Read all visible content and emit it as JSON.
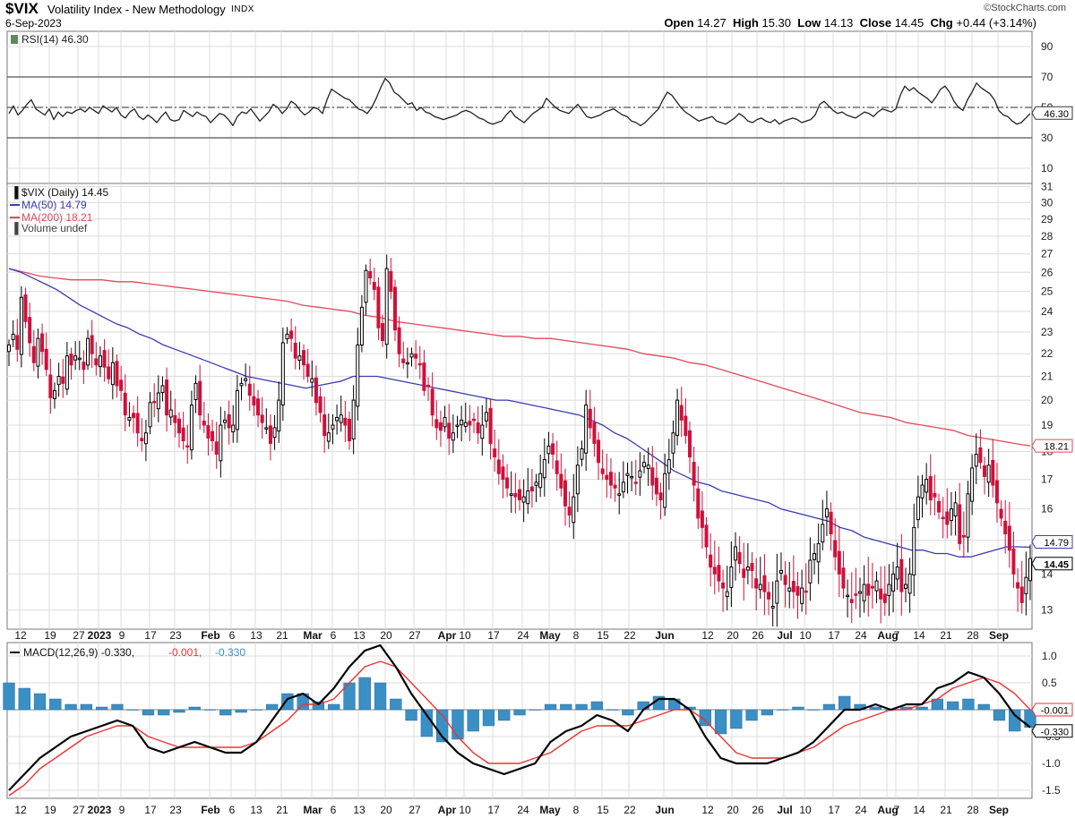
{
  "header": {
    "symbol": "$VIX",
    "name": "Volatility Index - New Methodology",
    "exchange": "INDX",
    "date": "6-Sep-2023",
    "credit": "©StockCharts.com",
    "open_label": "Open",
    "open": "14.27",
    "high_label": "High",
    "high": "15.30",
    "low_label": "Low",
    "low": "14.13",
    "close_label": "Close",
    "close": "14.45",
    "chg_label": "Chg",
    "chg": "+0.44 (+3.14%)"
  },
  "colors": {
    "up": "#000000",
    "down": "#d0103a",
    "ma50": "#3b3bb0",
    "ma200": "#e04a5a",
    "macd_line": "#000000",
    "signal_line": "#ee3333",
    "histogram": "#3a8fc4",
    "grid": "#dcdcdc"
  },
  "x_axis": {
    "tick_labels": [
      "12",
      "19",
      "27",
      "2023",
      "9",
      "17",
      "23",
      "Feb",
      "6",
      "13",
      "21",
      "Mar",
      "6",
      "13",
      "20",
      "27",
      "Apr",
      "10",
      "17",
      "24",
      "May",
      "8",
      "15",
      "22",
      "Jun",
      "12",
      "20",
      "26",
      "Jul",
      "10",
      "17",
      "24",
      "Aug",
      "7",
      "14",
      "21",
      "28",
      "Sep"
    ]
  },
  "chart_data": [
    {
      "type": "line",
      "panel": "rsi",
      "legend": "RSI(14) 46.30",
      "ylim": [
        0,
        100
      ],
      "yticks": [
        10,
        30,
        50,
        70,
        90
      ],
      "reference_lines": [
        30,
        50,
        70
      ],
      "last_value_label": "46.30",
      "series": [
        {
          "name": "RSI(14)",
          "values": [
            46,
            51,
            45,
            48,
            52,
            55,
            49,
            47,
            45,
            49,
            42,
            47,
            44,
            47,
            46,
            48,
            49,
            47,
            50,
            48,
            46,
            51,
            49,
            47,
            50,
            45,
            43,
            47,
            49,
            44,
            42,
            45,
            43,
            40,
            44,
            47,
            42,
            41,
            42,
            48,
            46,
            44,
            47,
            45,
            44,
            40,
            43,
            46,
            45,
            42,
            38,
            44,
            47,
            46,
            49,
            45,
            41,
            44,
            47,
            52,
            50,
            46,
            49,
            54,
            52,
            48,
            45,
            47,
            50,
            49,
            46,
            55,
            62,
            60,
            58,
            56,
            55,
            52,
            49,
            48,
            46,
            50,
            56,
            63,
            69,
            66,
            60,
            58,
            55,
            52,
            53,
            48,
            50,
            47,
            46,
            44,
            43,
            42,
            43,
            44,
            45,
            47,
            48,
            47,
            45,
            43,
            42,
            40,
            39,
            40,
            41,
            45,
            48,
            44,
            42,
            40,
            43,
            46,
            48,
            50,
            56,
            53,
            50,
            48,
            47,
            46,
            49,
            52,
            48,
            44,
            43,
            44,
            45,
            47,
            48,
            49,
            47,
            45,
            44,
            41,
            40,
            38,
            40,
            43,
            46,
            49,
            55,
            60,
            58,
            54,
            50,
            47,
            45,
            43,
            41,
            42,
            43,
            44,
            41,
            40,
            39,
            41,
            43,
            46,
            44,
            41,
            40,
            42,
            43,
            41,
            40,
            42,
            39,
            41,
            42,
            43,
            42,
            40,
            41,
            42,
            45,
            52,
            54,
            51,
            48,
            46,
            47,
            45,
            44,
            43,
            45,
            47,
            46,
            44,
            47,
            49,
            48,
            47,
            49,
            58,
            64,
            61,
            63,
            60,
            58,
            56,
            53,
            57,
            62,
            64,
            60,
            54,
            50,
            48,
            55,
            60,
            66,
            63,
            61,
            59,
            55,
            48,
            45,
            44,
            41,
            39,
            40,
            43,
            46
          ]
        }
      ],
      "xlabel": "",
      "ylabel": ""
    },
    {
      "type": "candlestick",
      "panel": "price",
      "legend": [
        "$VIX (Daily) 14.45",
        "MA(50) 14.79",
        "MA(200) 18.21",
        "Volume undef"
      ],
      "ylim": [
        12.5,
        31.2
      ],
      "yticks": [
        13,
        14,
        15,
        16,
        17,
        18,
        19,
        20,
        21,
        22,
        23,
        24,
        25,
        26,
        27,
        28,
        29,
        30,
        31
      ],
      "value_tags": {
        "ma200": "18.21",
        "ma50": "14.79",
        "close": "14.45"
      },
      "series_close": [
        22.4,
        22.9,
        22.2,
        24.7,
        23.5,
        22.5,
        21.6,
        22.7,
        22.1,
        21.3,
        20.1,
        20.4,
        21.0,
        20.7,
        21.9,
        21.5,
        21.9,
        21.8,
        21.3,
        22.7,
        22.0,
        21.5,
        21.9,
        21.4,
        20.9,
        21.6,
        20.6,
        20.4,
        19.4,
        19.3,
        19.3,
        18.7,
        18.4,
        18.7,
        19.9,
        19.9,
        20.3,
        20.6,
        19.4,
        19.6,
        19.1,
        18.7,
        18.4,
        18.2,
        19.8,
        20.7,
        19.4,
        19.0,
        18.5,
        18.4,
        17.9,
        19.0,
        19.2,
        18.9,
        19.0,
        20.4,
        20.7,
        20.9,
        20.2,
        19.8,
        19.4,
        19.1,
        18.9,
        18.3,
        18.9,
        20.0,
        22.5,
        22.9,
        22.7,
        21.8,
        21.9,
        21.5,
        21.0,
        20.9,
        19.9,
        19.5,
        18.6,
        18.7,
        19.0,
        19.3,
        19.4,
        19.0,
        18.4,
        20.0,
        22.4,
        24.2,
        26.1,
        25.7,
        25.1,
        23.2,
        22.6,
        26.2,
        25.0,
        23.1,
        22.0,
        21.6,
        21.6,
        22.0,
        21.8,
        21.5,
        20.4,
        20.6,
        19.4,
        18.9,
        18.8,
        19.3,
        18.5,
        18.7,
        19.0,
        19.2,
        19.1,
        19.0,
        19.2,
        18.7,
        19.0,
        19.5,
        18.3,
        17.8,
        17.2,
        17.0,
        16.7,
        16.5,
        16.4,
        16.3,
        16.4,
        16.6,
        16.6,
        16.9,
        17.2,
        17.7,
        18.2,
        17.9,
        17.2,
        16.7,
        16.1,
        15.8,
        16.4,
        17.5,
        18.1,
        19.8,
        18.9,
        18.3,
        17.6,
        17.2,
        17.0,
        16.8,
        16.7,
        16.5,
        16.9,
        17.2,
        17.1,
        16.9,
        17.3,
        17.6,
        17.5,
        16.8,
        16.5,
        16.3,
        17.2,
        17.7,
        18.7,
        20.0,
        19.2,
        18.6,
        17.8,
        16.8,
        15.7,
        15.4,
        14.8,
        14.2,
        14.0,
        13.8,
        13.6,
        13.5,
        14.2,
        14.8,
        14.3,
        13.9,
        14.2,
        14.1,
        13.6,
        13.7,
        13.5,
        13.3,
        13.1,
        13.8,
        14.1,
        13.7,
        13.6,
        13.5,
        13.4,
        13.6,
        13.5,
        14.4,
        14.6,
        14.9,
        15.5,
        16.0,
        15.2,
        14.5,
        14.0,
        13.6,
        13.4,
        13.2,
        13.4,
        13.5,
        13.7,
        13.4,
        13.6,
        13.8,
        13.3,
        13.2,
        13.7,
        14.0,
        14.2,
        13.5,
        13.7,
        14.0,
        15.4,
        16.4,
        16.8,
        17.0,
        16.3,
        16.4,
        15.9,
        15.7,
        15.5,
        16.0,
        16.2,
        14.9,
        15.1,
        16.5,
        17.4,
        17.9,
        17.6,
        17.1,
        17.5,
        16.8,
        16.2,
        15.7,
        15.2,
        14.7,
        14.0,
        13.6,
        13.2,
        13.9,
        14.45
      ],
      "ma50": [
        26.2,
        26.0,
        25.7,
        25.4,
        25.1,
        24.7,
        24.3,
        24.0,
        23.7,
        23.4,
        23.2,
        22.9,
        22.7,
        22.4,
        22.2,
        22.0,
        21.8,
        21.6,
        21.4,
        21.2,
        21.0,
        20.9,
        20.8,
        20.7,
        20.6,
        20.5,
        20.6,
        20.7,
        20.8,
        21.0,
        21.0,
        21.0,
        20.9,
        20.8,
        20.7,
        20.6,
        20.5,
        20.4,
        20.3,
        20.2,
        20.1,
        20.0,
        20.0,
        19.9,
        19.8,
        19.7,
        19.6,
        19.5,
        19.4,
        19.2,
        19.0,
        18.7,
        18.5,
        18.2,
        17.9,
        17.6,
        17.3,
        17.1,
        16.9,
        16.8,
        16.6,
        16.5,
        16.4,
        16.3,
        16.2,
        16.0,
        15.9,
        15.8,
        15.7,
        15.6,
        15.4,
        15.3,
        15.1,
        15.0,
        14.9,
        14.8,
        14.7,
        14.7,
        14.6,
        14.6,
        14.5,
        14.5,
        14.6,
        14.7,
        14.8,
        14.8,
        14.79
      ],
      "ma200": [
        26.2,
        26.0,
        25.8,
        25.7,
        25.6,
        25.6,
        25.6,
        25.5,
        25.5,
        25.4,
        25.3,
        25.2,
        25.1,
        25.0,
        24.9,
        24.8,
        24.7,
        24.6,
        24.5,
        24.3,
        24.2,
        24.1,
        24.0,
        23.8,
        23.7,
        23.5,
        23.4,
        23.3,
        23.2,
        23.1,
        23.0,
        22.9,
        22.8,
        22.8,
        22.7,
        22.7,
        22.6,
        22.5,
        22.4,
        22.3,
        22.2,
        22.0,
        21.9,
        21.8,
        21.6,
        21.5,
        21.3,
        21.1,
        20.9,
        20.7,
        20.5,
        20.3,
        20.1,
        19.9,
        19.7,
        19.5,
        19.4,
        19.3,
        19.1,
        19.0,
        18.9,
        18.8,
        18.6,
        18.5,
        18.4,
        18.3,
        18.21
      ],
      "xlabel": "",
      "ylabel": ""
    },
    {
      "type": "line",
      "panel": "macd",
      "legend": [
        "MACD(12,26,9) -0.330",
        "-0.001",
        "-0.330"
      ],
      "ylim": [
        -1.65,
        1.25
      ],
      "yticks": [
        1.0,
        0.5,
        0.0,
        -0.5,
        -1.0,
        -1.5
      ],
      "tick_labels": [
        "1.0",
        "0.5",
        "-0.5",
        "-1.0",
        "-1.5"
      ],
      "value_tags": {
        "signal": "-0.001",
        "macd": "-0.330"
      },
      "series": [
        {
          "name": "MACD(12,26,9)",
          "values": [
            -1.5,
            -1.2,
            -0.9,
            -0.7,
            -0.5,
            -0.4,
            -0.3,
            -0.2,
            -0.3,
            -0.7,
            -0.8,
            -0.7,
            -0.6,
            -0.7,
            -0.8,
            -0.8,
            -0.6,
            -0.2,
            0.2,
            0.3,
            0.1,
            0.4,
            0.8,
            1.1,
            1.2,
            0.8,
            0.3,
            -0.1,
            -0.5,
            -0.8,
            -1.0,
            -1.1,
            -1.2,
            -1.1,
            -1.0,
            -0.6,
            -0.4,
            -0.3,
            -0.1,
            -0.2,
            -0.4,
            0.0,
            0.2,
            0.2,
            0.0,
            -0.5,
            -0.9,
            -1.0,
            -1.0,
            -1.0,
            -0.9,
            -0.8,
            -0.6,
            -0.3,
            0.0,
            0.0,
            0.1,
            0.0,
            0.1,
            0.1,
            0.4,
            0.5,
            0.7,
            0.6,
            0.3,
            -0.1,
            -0.33
          ]
        },
        {
          "name": "Signal",
          "values": [
            -1.6,
            -1.4,
            -1.1,
            -0.9,
            -0.7,
            -0.5,
            -0.4,
            -0.3,
            -0.3,
            -0.5,
            -0.6,
            -0.7,
            -0.7,
            -0.7,
            -0.7,
            -0.7,
            -0.6,
            -0.4,
            -0.2,
            0.1,
            0.1,
            0.2,
            0.5,
            0.8,
            0.9,
            0.8,
            0.5,
            0.2,
            -0.1,
            -0.5,
            -0.8,
            -1.0,
            -1.0,
            -1.0,
            -0.9,
            -0.8,
            -0.6,
            -0.4,
            -0.3,
            -0.3,
            -0.3,
            -0.2,
            -0.1,
            0.0,
            0.0,
            -0.2,
            -0.5,
            -0.8,
            -0.9,
            -0.9,
            -0.9,
            -0.8,
            -0.7,
            -0.5,
            -0.3,
            -0.2,
            -0.1,
            0.0,
            0.0,
            0.1,
            0.2,
            0.4,
            0.5,
            0.6,
            0.5,
            0.3,
            0.0
          ]
        },
        {
          "name": "Histogram",
          "values": [
            0.5,
            0.4,
            0.3,
            0.2,
            0.1,
            0.1,
            0.05,
            0.1,
            0.0,
            -0.1,
            -0.1,
            -0.05,
            0.05,
            0.0,
            -0.1,
            -0.05,
            0.0,
            0.1,
            0.3,
            0.3,
            0.15,
            0.1,
            0.5,
            0.6,
            0.5,
            0.2,
            -0.2,
            -0.5,
            -0.6,
            -0.55,
            -0.4,
            -0.3,
            -0.2,
            -0.1,
            0.0,
            0.1,
            0.1,
            0.1,
            0.15,
            0.0,
            -0.1,
            0.15,
            0.25,
            0.2,
            0.05,
            -0.3,
            -0.45,
            -0.35,
            -0.2,
            -0.1,
            0.0,
            0.05,
            0.0,
            0.1,
            0.25,
            0.1,
            0.05,
            0.0,
            0.05,
            0.05,
            0.2,
            0.15,
            0.2,
            0.1,
            -0.2,
            -0.4,
            -0.33
          ]
        }
      ],
      "xlabel": "",
      "ylabel": ""
    }
  ]
}
